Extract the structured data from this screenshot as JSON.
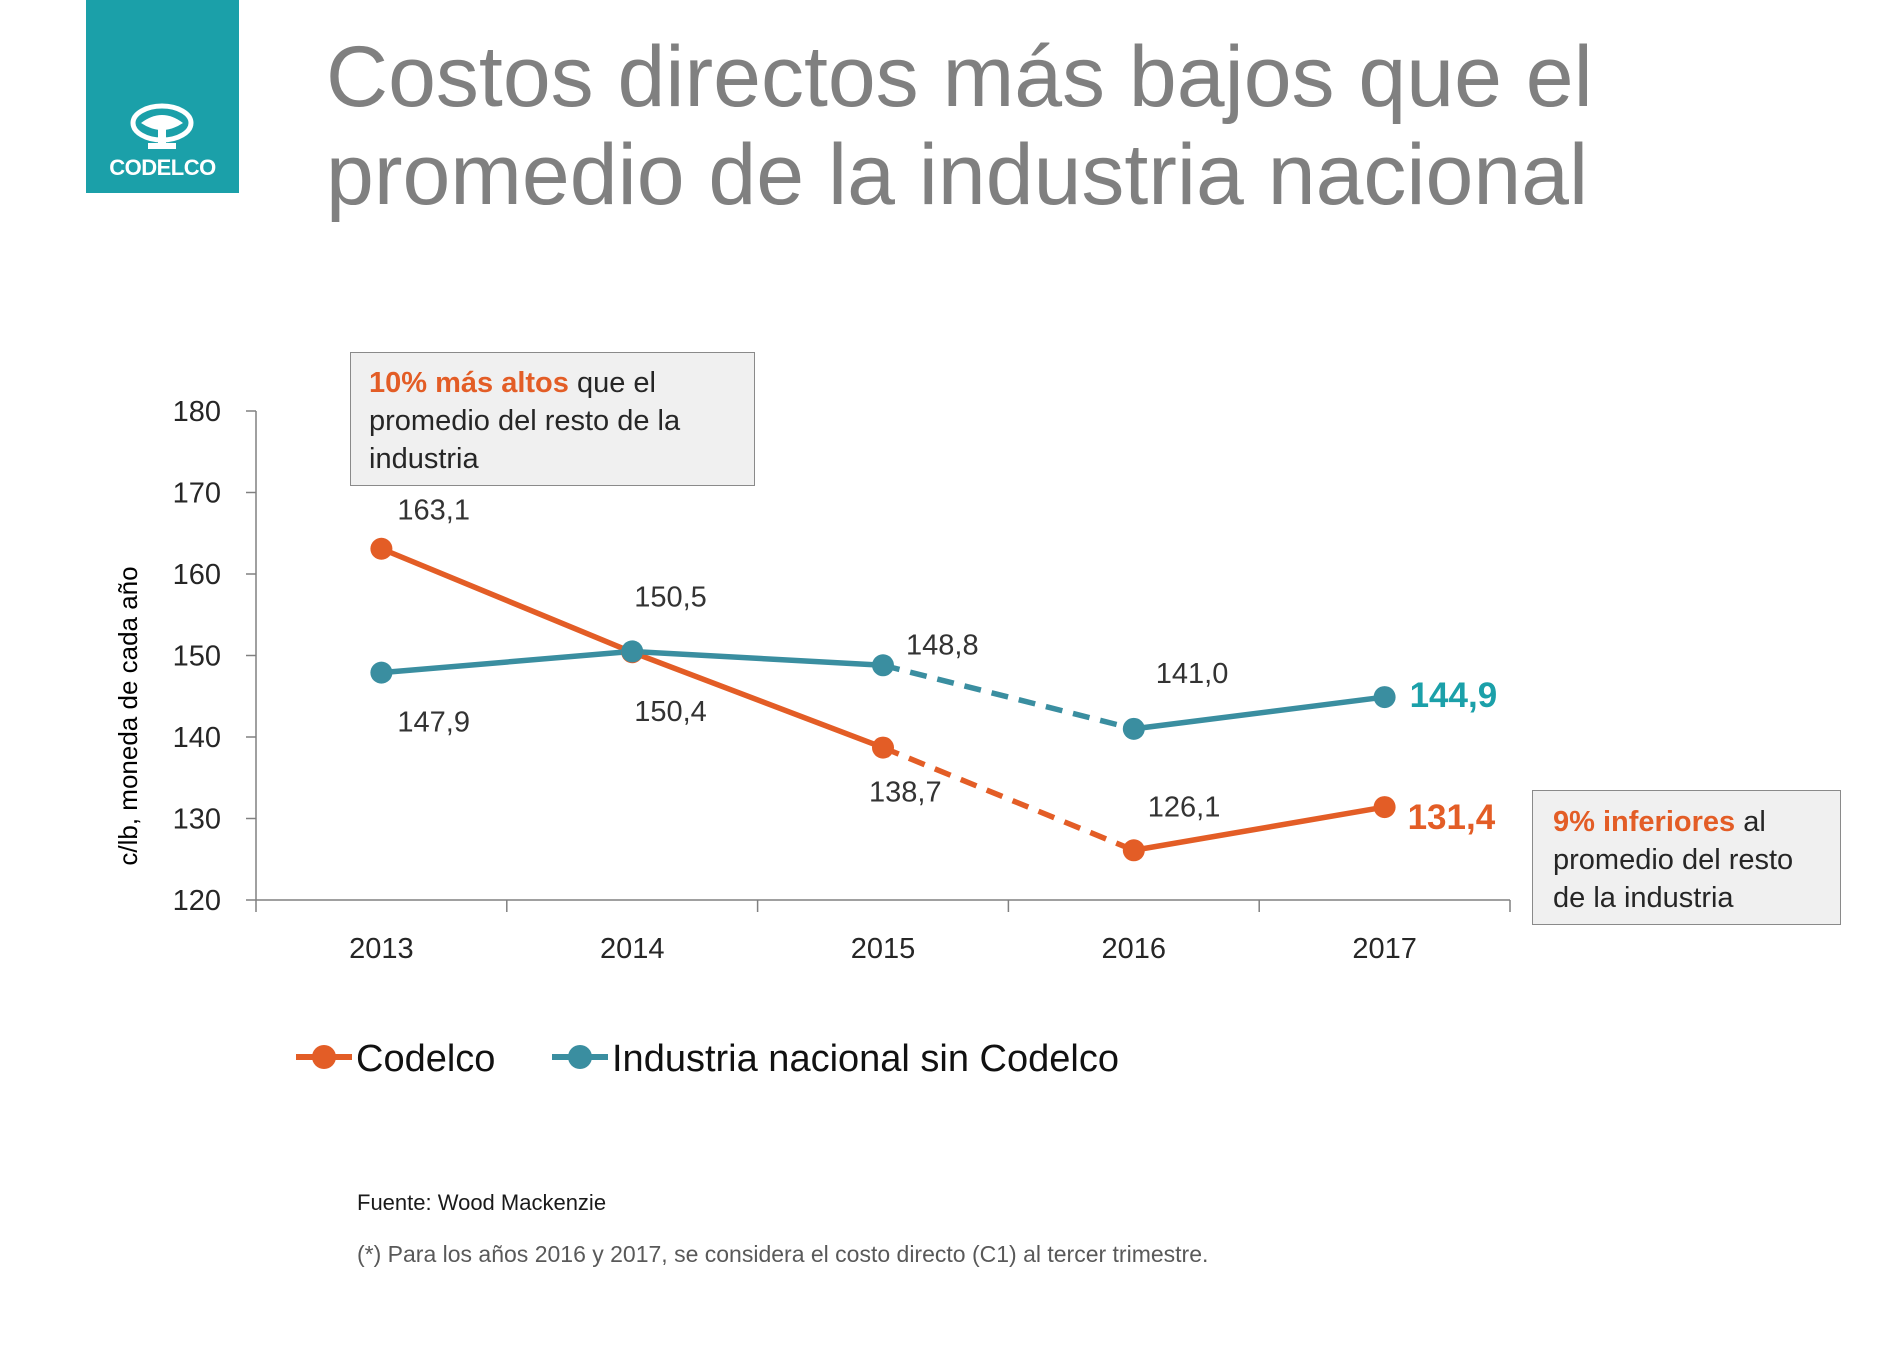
{
  "logo": {
    "text": "CODELCO"
  },
  "title": "Costos directos más bajos que el promedio de la industria nacional",
  "colors": {
    "codelco": "#e35d26",
    "industria": "#3a8ea0",
    "accent_teal": "#1ba0a9",
    "axis": "#808080"
  },
  "chart_data": {
    "type": "line",
    "categories": [
      "2013",
      "2014",
      "2015",
      "2016",
      "2017"
    ],
    "ylabel": "c/lb, moneda de cada año",
    "xlabel": "",
    "ylim": [
      120,
      180
    ],
    "yticks": [
      180,
      170,
      160,
      150,
      140,
      130,
      120
    ],
    "grid": false,
    "legend_position": "bottom",
    "series": [
      {
        "name": "Codelco",
        "color": "#e35d26",
        "values": [
          163.1,
          150.4,
          138.7,
          126.1,
          131.4
        ],
        "labels": [
          "163,1",
          "150,4",
          "138,7",
          "126,1",
          "131,4"
        ],
        "dashed_segments": [
          2
        ]
      },
      {
        "name": "Industria nacional sin Codelco",
        "color": "#3a8ea0",
        "values": [
          147.9,
          150.5,
          148.8,
          141.0,
          144.9
        ],
        "labels": [
          "147,9",
          "150,5",
          "148,8",
          "141,0",
          "144,9"
        ],
        "dashed_segments": [
          2
        ]
      }
    ]
  },
  "callouts": {
    "top": {
      "highlight": "10% más altos",
      "rest": " que el promedio del resto de la industria"
    },
    "bottom": {
      "highlight": "9% inferiores",
      "rest": " al promedio del resto de la industria"
    }
  },
  "source": "Fuente: Wood Mackenzie",
  "footnote": "(*) Para los años 2016 y 2017, se considera el costo directo (C1) al tercer trimestre."
}
